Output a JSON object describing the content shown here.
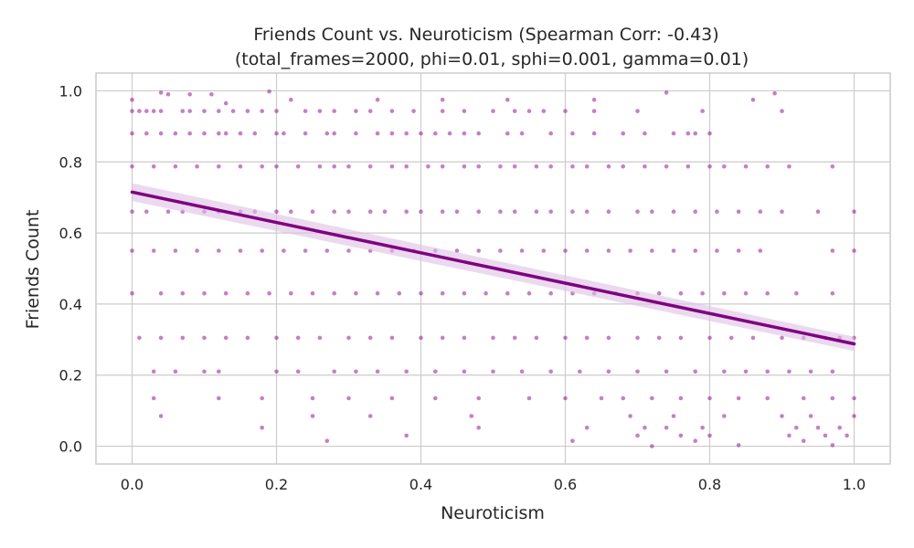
{
  "chart_data": {
    "type": "scatter",
    "title": "Friends Count vs. Neuroticism (Spearman Corr: -0.43)",
    "subtitle": "(total_frames=2000, phi=0.01, sphi=0.001, gamma=0.01)",
    "xlabel": "Neuroticism",
    "ylabel": "Friends Count",
    "xlim": [
      -0.05,
      1.05
    ],
    "ylim": [
      -0.05,
      1.05
    ],
    "x_ticks": [
      0.0,
      0.2,
      0.4,
      0.6,
      0.8,
      1.0
    ],
    "x_tick_labels": [
      "0.0",
      "0.2",
      "0.4",
      "0.6",
      "0.8",
      "1.0"
    ],
    "y_ticks": [
      0.0,
      0.2,
      0.4,
      0.6,
      0.8,
      1.0
    ],
    "y_tick_labels": [
      "0.0",
      "0.2",
      "0.4",
      "0.6",
      "0.8",
      "1.0"
    ],
    "grid": true,
    "colors": {
      "points": "#8b008b",
      "line": "#800080",
      "band": "#dcc0e4",
      "grid": "#cccccc",
      "spine": "#cccccc",
      "text": "#262626"
    },
    "regression": {
      "x": [
        0.0,
        1.0
      ],
      "y": [
        0.715,
        0.288
      ],
      "ci_low": [
        0.69,
        0.268
      ],
      "ci_high": [
        0.74,
        0.308
      ]
    },
    "series": [
      {
        "y_levels": [
          {
            "y": 0.943,
            "x": [
              0.0,
              0.01,
              0.02,
              0.03,
              0.04,
              0.07,
              0.08,
              0.1,
              0.12,
              0.14,
              0.16,
              0.18,
              0.2,
              0.24,
              0.26,
              0.28,
              0.31,
              0.33,
              0.36,
              0.39,
              0.43,
              0.46,
              0.5,
              0.53,
              0.55,
              0.57,
              0.6,
              0.64,
              0.7,
              0.79,
              0.9
            ]
          },
          {
            "y": 0.88,
            "x": [
              0.0,
              0.02,
              0.04,
              0.06,
              0.08,
              0.1,
              0.12,
              0.13,
              0.15,
              0.17,
              0.2,
              0.21,
              0.24,
              0.27,
              0.28,
              0.31,
              0.34,
              0.36,
              0.38,
              0.4,
              0.42,
              0.44,
              0.46,
              0.48,
              0.52,
              0.54,
              0.58,
              0.61,
              0.64,
              0.68,
              0.71,
              0.75,
              0.77,
              0.78,
              0.8
            ]
          },
          {
            "y": 0.787,
            "x": [
              0.0,
              0.03,
              0.06,
              0.09,
              0.12,
              0.15,
              0.18,
              0.2,
              0.23,
              0.26,
              0.28,
              0.3,
              0.33,
              0.36,
              0.38,
              0.41,
              0.43,
              0.46,
              0.48,
              0.51,
              0.53,
              0.56,
              0.58,
              0.61,
              0.63,
              0.66,
              0.68,
              0.71,
              0.74,
              0.77,
              0.8,
              0.82,
              0.85,
              0.88,
              0.91,
              0.97
            ]
          },
          {
            "y": 0.66,
            "x": [
              0.0,
              0.02,
              0.05,
              0.07,
              0.1,
              0.12,
              0.15,
              0.17,
              0.2,
              0.22,
              0.25,
              0.28,
              0.3,
              0.33,
              0.35,
              0.38,
              0.4,
              0.43,
              0.45,
              0.48,
              0.51,
              0.53,
              0.56,
              0.58,
              0.61,
              0.63,
              0.66,
              0.7,
              0.72,
              0.75,
              0.78,
              0.81,
              0.84,
              0.87,
              0.9,
              0.95,
              1.0
            ]
          },
          {
            "y": 0.55,
            "x": [
              0.0,
              0.03,
              0.06,
              0.09,
              0.12,
              0.15,
              0.18,
              0.21,
              0.24,
              0.27,
              0.3,
              0.33,
              0.36,
              0.39,
              0.42,
              0.45,
              0.48,
              0.51,
              0.54,
              0.57,
              0.6,
              0.63,
              0.66,
              0.69,
              0.72,
              0.75,
              0.78,
              0.81,
              0.84,
              0.87,
              0.97,
              1.0
            ]
          },
          {
            "y": 0.43,
            "x": [
              0.0,
              0.04,
              0.07,
              0.1,
              0.13,
              0.16,
              0.19,
              0.22,
              0.25,
              0.28,
              0.31,
              0.34,
              0.37,
              0.4,
              0.43,
              0.46,
              0.49,
              0.52,
              0.55,
              0.58,
              0.61,
              0.64,
              0.67,
              0.7,
              0.73,
              0.76,
              0.79,
              0.82,
              0.85,
              0.88,
              0.92,
              0.97
            ]
          },
          {
            "y": 0.305,
            "x": [
              0.01,
              0.04,
              0.07,
              0.1,
              0.13,
              0.16,
              0.2,
              0.23,
              0.26,
              0.3,
              0.33,
              0.36,
              0.4,
              0.43,
              0.46,
              0.5,
              0.53,
              0.56,
              0.6,
              0.63,
              0.66,
              0.7,
              0.73,
              0.76,
              0.8,
              0.83,
              0.86,
              0.9,
              0.93,
              0.96,
              0.98,
              1.0
            ]
          },
          {
            "y": 0.21,
            "x": [
              0.03,
              0.06,
              0.1,
              0.12,
              0.2,
              0.23,
              0.28,
              0.31,
              0.34,
              0.38,
              0.42,
              0.46,
              0.5,
              0.54,
              0.58,
              0.62,
              0.66,
              0.7,
              0.74,
              0.78,
              0.82,
              0.85,
              0.88,
              0.91,
              0.94,
              0.97
            ]
          },
          {
            "y": 0.135,
            "x": [
              0.03,
              0.12,
              0.18,
              0.25,
              0.3,
              0.36,
              0.42,
              0.48,
              0.55,
              0.6,
              0.65,
              0.68,
              0.72,
              0.76,
              0.8,
              0.84,
              0.88,
              0.93,
              0.97,
              1.0
            ]
          }
        ],
        "extra_points": [
          {
            "x": 0.04,
            "y": 0.995
          },
          {
            "x": 0.05,
            "y": 0.99
          },
          {
            "x": 0.0,
            "y": 0.975
          },
          {
            "x": 0.08,
            "y": 0.99
          },
          {
            "x": 0.11,
            "y": 0.99
          },
          {
            "x": 0.19,
            "y": 0.998
          },
          {
            "x": 0.74,
            "y": 0.995
          },
          {
            "x": 0.89,
            "y": 0.993
          },
          {
            "x": 0.22,
            "y": 0.975
          },
          {
            "x": 0.34,
            "y": 0.975
          },
          {
            "x": 0.43,
            "y": 0.975
          },
          {
            "x": 0.52,
            "y": 0.975
          },
          {
            "x": 0.64,
            "y": 0.975
          },
          {
            "x": 0.86,
            "y": 0.975
          },
          {
            "x": 0.13,
            "y": 0.965
          },
          {
            "x": 0.04,
            "y": 0.085
          },
          {
            "x": 0.18,
            "y": 0.052
          },
          {
            "x": 0.25,
            "y": 0.085
          },
          {
            "x": 0.27,
            "y": 0.015
          },
          {
            "x": 0.33,
            "y": 0.085
          },
          {
            "x": 0.38,
            "y": 0.03
          },
          {
            "x": 0.47,
            "y": 0.085
          },
          {
            "x": 0.48,
            "y": 0.052
          },
          {
            "x": 0.61,
            "y": 0.015
          },
          {
            "x": 0.63,
            "y": 0.052
          },
          {
            "x": 0.69,
            "y": 0.085
          },
          {
            "x": 0.7,
            "y": 0.03
          },
          {
            "x": 0.71,
            "y": 0.052
          },
          {
            "x": 0.72,
            "y": 0.0
          },
          {
            "x": 0.74,
            "y": 0.052
          },
          {
            "x": 0.75,
            "y": 0.085
          },
          {
            "x": 0.76,
            "y": 0.03
          },
          {
            "x": 0.78,
            "y": 0.015
          },
          {
            "x": 0.79,
            "y": 0.052
          },
          {
            "x": 0.8,
            "y": 0.03
          },
          {
            "x": 0.82,
            "y": 0.085
          },
          {
            "x": 0.84,
            "y": 0.003
          },
          {
            "x": 0.9,
            "y": 0.085
          },
          {
            "x": 0.91,
            "y": 0.03
          },
          {
            "x": 0.92,
            "y": 0.052
          },
          {
            "x": 0.93,
            "y": 0.015
          },
          {
            "x": 0.94,
            "y": 0.085
          },
          {
            "x": 0.95,
            "y": 0.052
          },
          {
            "x": 0.96,
            "y": 0.03
          },
          {
            "x": 0.97,
            "y": 0.003
          },
          {
            "x": 0.98,
            "y": 0.052
          },
          {
            "x": 0.99,
            "y": 0.03
          },
          {
            "x": 1.0,
            "y": 0.085
          }
        ]
      }
    ]
  }
}
